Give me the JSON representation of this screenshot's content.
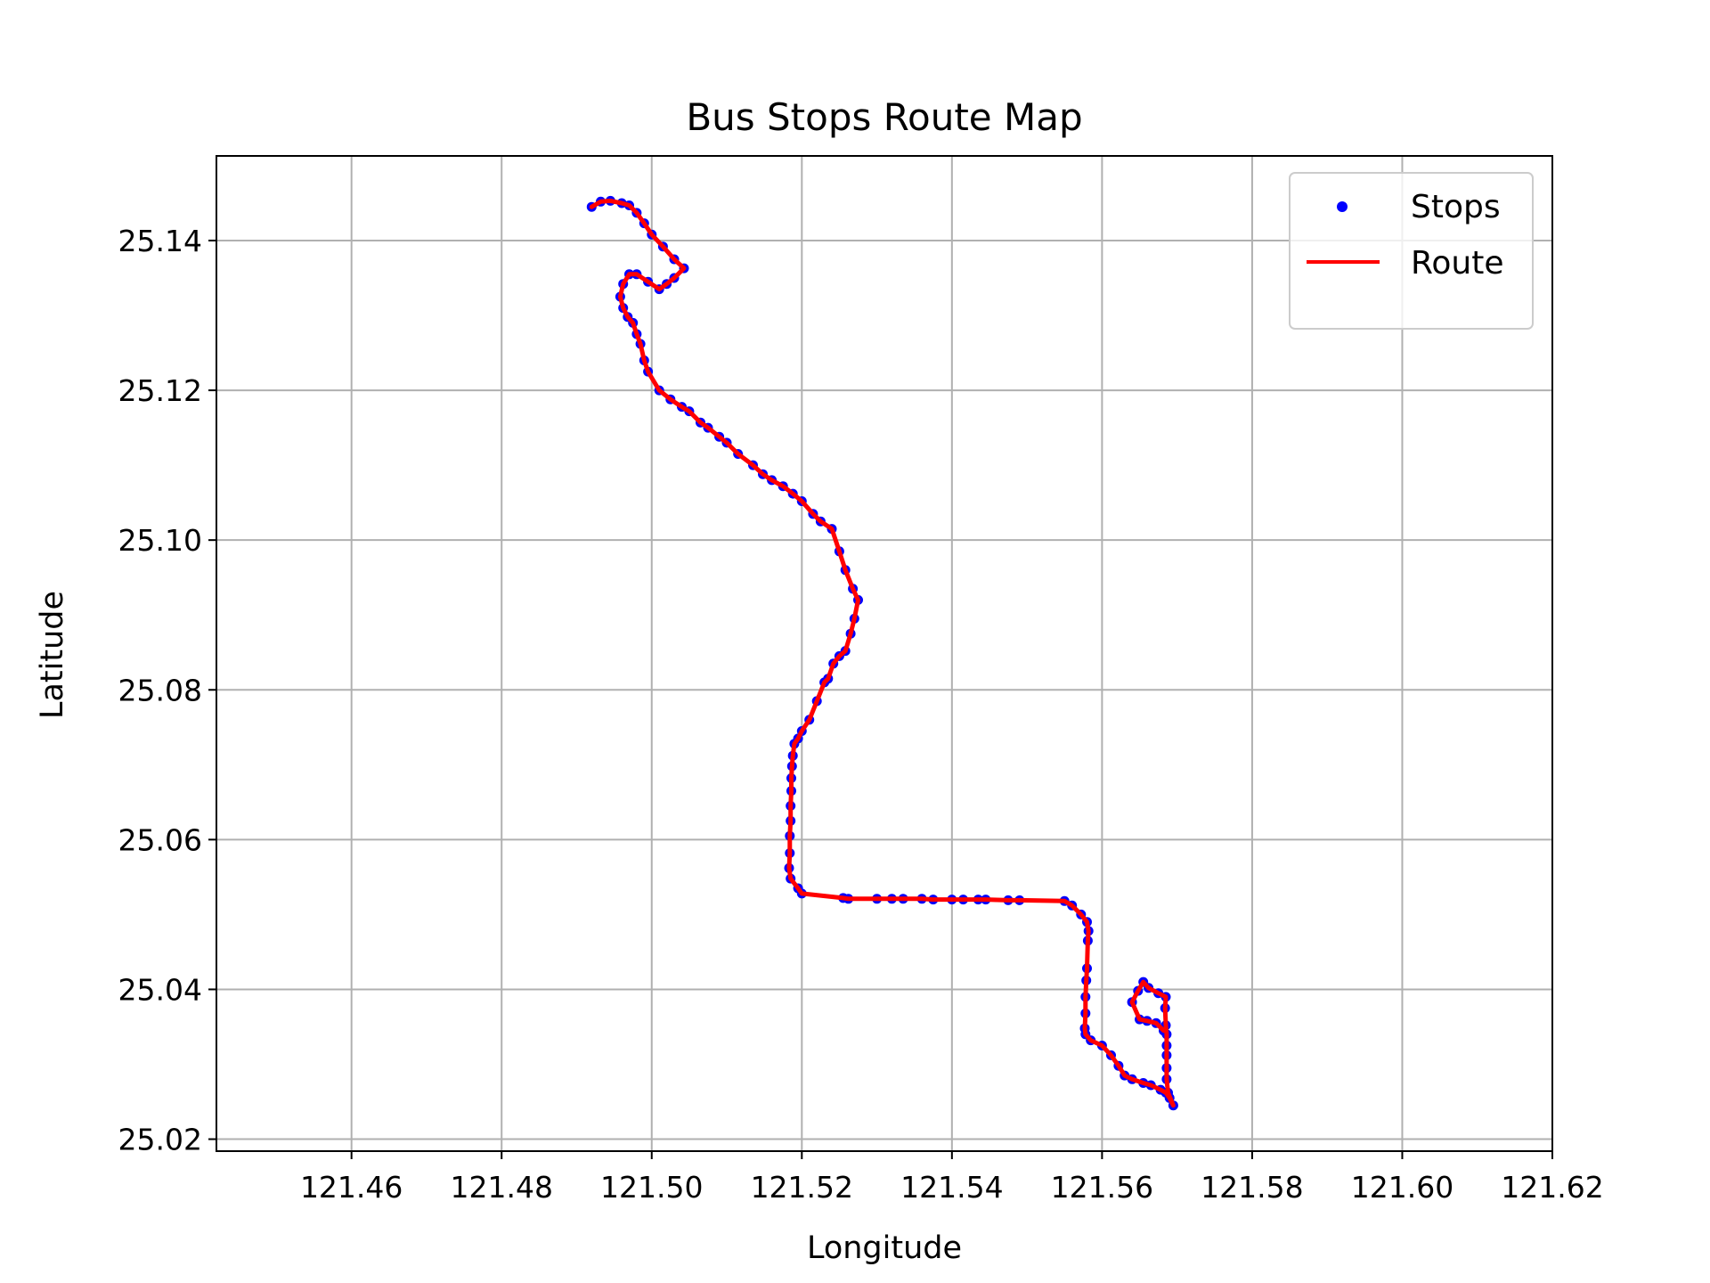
{
  "chart_data": {
    "type": "scatter",
    "title": "Bus Stops Route Map",
    "xlabel": "Longitude",
    "ylabel": "Latitude",
    "xlim": [
      121.442,
      121.62
    ],
    "ylim": [
      25.0184,
      25.1513
    ],
    "xticks": [
      121.46,
      121.48,
      121.5,
      121.52,
      121.54,
      121.56,
      121.58,
      121.6,
      121.62
    ],
    "xtick_labels": [
      "121.46",
      "121.48",
      "121.50",
      "121.52",
      "121.54",
      "121.56",
      "121.58",
      "121.60",
      "121.62"
    ],
    "yticks": [
      25.02,
      25.04,
      25.06,
      25.08,
      25.1,
      25.12,
      25.14
    ],
    "ytick_labels": [
      "25.02",
      "25.04",
      "25.06",
      "25.08",
      "25.10",
      "25.12",
      "25.14"
    ],
    "grid": true,
    "legend_position": "top-right",
    "series": [
      {
        "name": "Stops",
        "kind": "scatter",
        "color": "#0000ff"
      },
      {
        "name": "Route",
        "kind": "line",
        "color": "#ff0000"
      }
    ],
    "points": [
      [
        121.492,
        25.1445
      ],
      [
        121.4932,
        25.1452
      ],
      [
        121.4945,
        25.1453
      ],
      [
        121.496,
        25.145
      ],
      [
        121.497,
        25.1447
      ],
      [
        121.498,
        25.1437
      ],
      [
        121.499,
        25.1423
      ],
      [
        121.5,
        25.1408
      ],
      [
        121.5015,
        25.1392
      ],
      [
        121.503,
        25.1375
      ],
      [
        121.5043,
        25.1363
      ],
      [
        121.503,
        25.135
      ],
      [
        121.502,
        25.1342
      ],
      [
        121.501,
        25.1335
      ],
      [
        121.4995,
        25.1345
      ],
      [
        121.498,
        25.1355
      ],
      [
        121.497,
        25.1355
      ],
      [
        121.4962,
        25.1342
      ],
      [
        121.4958,
        25.1325
      ],
      [
        121.4962,
        25.131
      ],
      [
        121.4968,
        25.1298
      ],
      [
        121.4975,
        25.129
      ],
      [
        121.498,
        25.1275
      ],
      [
        121.4985,
        25.1262
      ],
      [
        121.499,
        25.124
      ],
      [
        121.4995,
        25.1225
      ],
      [
        121.501,
        25.12
      ],
      [
        121.5025,
        25.1188
      ],
      [
        121.504,
        25.1178
      ],
      [
        121.505,
        25.1172
      ],
      [
        121.5065,
        25.1157
      ],
      [
        121.5075,
        25.115
      ],
      [
        121.509,
        25.1138
      ],
      [
        121.51,
        25.113
      ],
      [
        121.5115,
        25.1115
      ],
      [
        121.5135,
        25.11
      ],
      [
        121.5148,
        25.1088
      ],
      [
        121.516,
        25.108
      ],
      [
        121.5175,
        25.1072
      ],
      [
        121.5188,
        25.1062
      ],
      [
        121.52,
        25.1052
      ],
      [
        121.5215,
        25.1035
      ],
      [
        121.5225,
        25.1025
      ],
      [
        121.524,
        25.1015
      ],
      [
        121.525,
        25.0985
      ],
      [
        121.5258,
        25.096
      ],
      [
        121.5268,
        25.0935
      ],
      [
        121.5275,
        25.092
      ],
      [
        121.527,
        25.0895
      ],
      [
        121.5265,
        25.0875
      ],
      [
        121.5258,
        25.0852
      ],
      [
        121.525,
        25.0845
      ],
      [
        121.5242,
        25.0835
      ],
      [
        121.5235,
        25.0815
      ],
      [
        121.523,
        25.081
      ],
      [
        121.522,
        25.0785
      ],
      [
        121.521,
        25.076
      ],
      [
        121.52,
        25.0745
      ],
      [
        121.5195,
        25.0735
      ],
      [
        121.519,
        25.0728
      ],
      [
        121.5188,
        25.0712
      ],
      [
        121.5187,
        25.0698
      ],
      [
        121.5186,
        25.0682
      ],
      [
        121.5186,
        25.0665
      ],
      [
        121.5185,
        25.0645
      ],
      [
        121.5185,
        25.0625
      ],
      [
        121.5184,
        25.0605
      ],
      [
        121.5184,
        25.0582
      ],
      [
        121.5183,
        25.0562
      ],
      [
        121.5185,
        25.0548
      ],
      [
        121.5195,
        25.0535
      ],
      [
        121.52,
        25.0528
      ],
      [
        121.5255,
        25.0522
      ],
      [
        121.5262,
        25.0521
      ],
      [
        121.53,
        25.0521
      ],
      [
        121.532,
        25.0521
      ],
      [
        121.5335,
        25.0521
      ],
      [
        121.536,
        25.0521
      ],
      [
        121.5375,
        25.052
      ],
      [
        121.54,
        25.052
      ],
      [
        121.5415,
        25.052
      ],
      [
        121.5435,
        25.052
      ],
      [
        121.5445,
        25.052
      ],
      [
        121.5475,
        25.0519
      ],
      [
        121.549,
        25.0519
      ],
      [
        121.555,
        25.0518
      ],
      [
        121.556,
        25.0512
      ],
      [
        121.5572,
        25.05
      ],
      [
        121.558,
        25.049
      ],
      [
        121.5582,
        25.0478
      ],
      [
        121.5581,
        25.0465
      ],
      [
        121.558,
        25.0428
      ],
      [
        121.5579,
        25.0412
      ],
      [
        121.5578,
        25.039
      ],
      [
        121.5578,
        25.0368
      ],
      [
        121.5577,
        25.0348
      ],
      [
        121.5578,
        25.034
      ],
      [
        121.5585,
        25.0332
      ],
      [
        121.56,
        25.0325
      ],
      [
        121.5612,
        25.0312
      ],
      [
        121.5622,
        25.0298
      ],
      [
        121.563,
        25.0285
      ],
      [
        121.564,
        25.028
      ],
      [
        121.5655,
        25.0275
      ],
      [
        121.5665,
        25.0272
      ],
      [
        121.5678,
        25.0266
      ],
      [
        121.5685,
        25.0262
      ],
      [
        121.569,
        25.0255
      ],
      [
        121.5695,
        25.0245
      ],
      [
        121.5688,
        25.0262
      ],
      [
        121.5686,
        25.028
      ],
      [
        121.5686,
        25.0295
      ],
      [
        121.5686,
        25.0312
      ],
      [
        121.5686,
        25.0325
      ],
      [
        121.5686,
        25.034
      ],
      [
        121.5685,
        25.0352
      ],
      [
        121.5684,
        25.0375
      ],
      [
        121.5685,
        25.039
      ],
      [
        121.5675,
        25.0395
      ],
      [
        121.5662,
        25.0402
      ],
      [
        121.5655,
        25.041
      ],
      [
        121.5648,
        25.0398
      ],
      [
        121.564,
        25.0383
      ],
      [
        121.565,
        25.036
      ],
      [
        121.566,
        25.0358
      ],
      [
        121.5672,
        25.0355
      ],
      [
        121.5682,
        25.0345
      ]
    ]
  }
}
